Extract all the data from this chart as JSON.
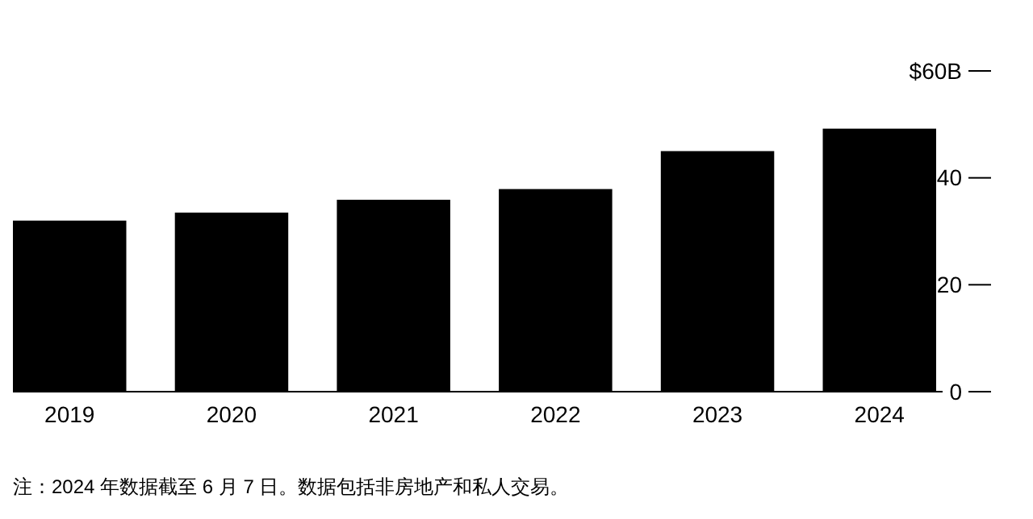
{
  "chart_data": {
    "type": "bar",
    "categories": [
      "2019",
      "2020",
      "2021",
      "2022",
      "2023",
      "2024"
    ],
    "values": [
      32.0,
      33.5,
      35.9,
      37.9,
      45.0,
      49.2
    ],
    "color": "#000000",
    "ylim": [
      0,
      60
    ],
    "yticks": [
      0,
      20,
      40,
      {
        "value": 60,
        "label": "$60B"
      }
    ],
    "grid": false,
    "annotations": [
      "注：2024 年数据截至 6 月 7 日。数据包括非房地产和私人交易。"
    ]
  }
}
